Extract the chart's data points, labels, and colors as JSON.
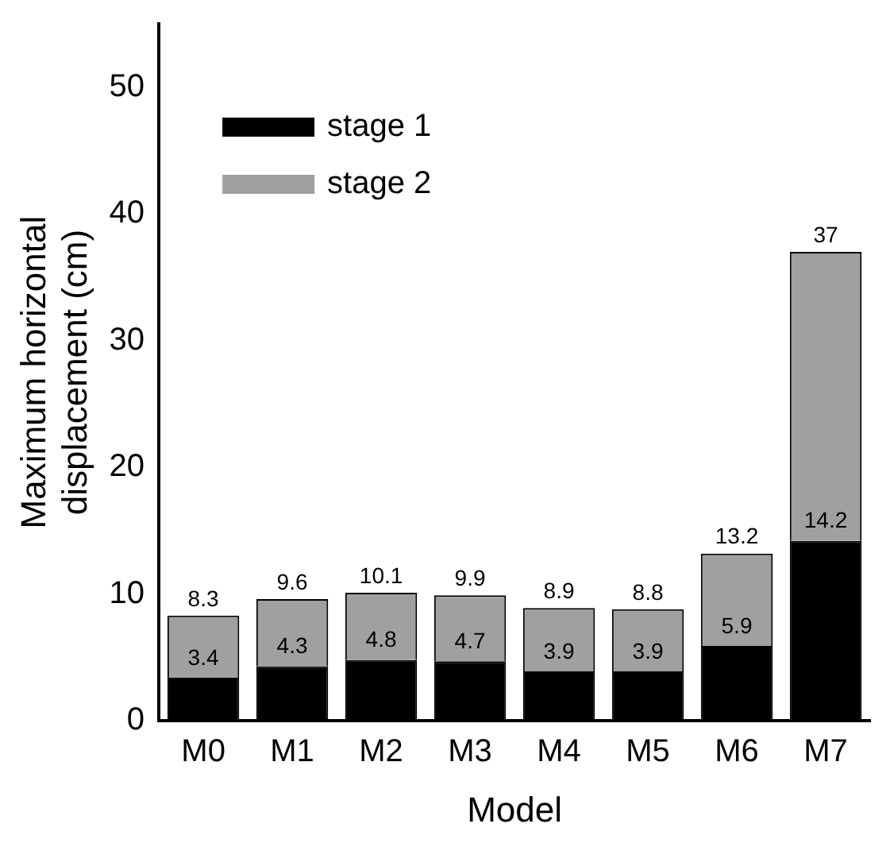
{
  "chart_data": {
    "type": "bar",
    "stacked": true,
    "xlabel": "Model",
    "ylabel": "Maximum horizontal displacement (cm)",
    "categories": [
      "M0",
      "M1",
      "M2",
      "M3",
      "M4",
      "M5",
      "M6",
      "M7"
    ],
    "series": [
      {
        "name": "stage 1",
        "color": "#000000",
        "values": [
          3.4,
          4.3,
          4.8,
          4.7,
          3.9,
          3.9,
          5.9,
          14.2
        ],
        "value_labels": [
          "3.4",
          "4.3",
          "4.8",
          "4.7",
          "3.9",
          "3.9",
          "5.9",
          "14.2"
        ]
      },
      {
        "name": "stage 2",
        "color": "#a0a0a0",
        "values": [
          4.9,
          5.3,
          5.3,
          5.2,
          5.0,
          4.9,
          7.3,
          22.8
        ]
      }
    ],
    "totals": [
      "8.3",
      "9.6",
      "10.1",
      "9.9",
      "8.9",
      "8.8",
      "13.2",
      "37"
    ],
    "ylim": [
      0,
      55
    ],
    "yticks": [
      0,
      10,
      20,
      30,
      40,
      50
    ],
    "grid": false,
    "legend": "top left"
  }
}
